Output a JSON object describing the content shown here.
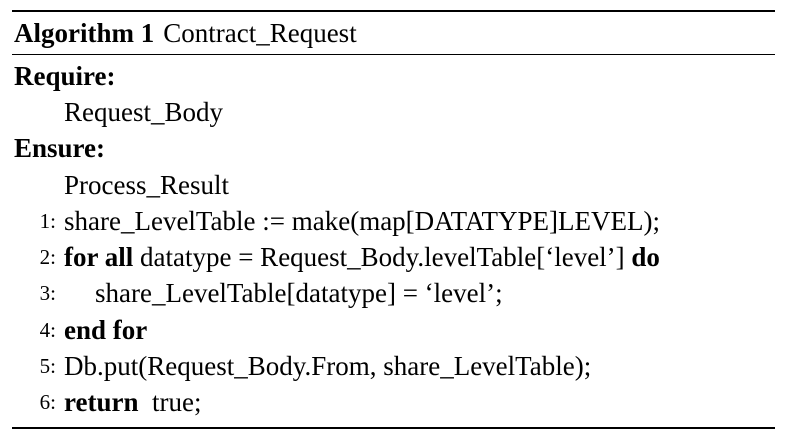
{
  "algorithm": {
    "label": "Algorithm 1",
    "title": "Contract_Request",
    "require_keyword": "Require:",
    "require_value": "Request_Body",
    "ensure_keyword": "Ensure:",
    "ensure_value": "Process_Result",
    "lines": [
      {
        "num": "1:",
        "parts": [
          "share_LevelTable := make(map[DATATYPE]LEVEL);"
        ]
      },
      {
        "num": "2:",
        "kw_start": "for all",
        "text": " datatype = Request_Body.levelTable[‘level’] ",
        "kw_end": "do"
      },
      {
        "num": "3:",
        "text": "share_LevelTable[datatype] = ‘level’;"
      },
      {
        "num": "4:",
        "kw_start": "end for"
      },
      {
        "num": "5:",
        "text": "Db.put(Request_Body.From, share_LevelTable);"
      },
      {
        "num": "6:",
        "kw_start": "return",
        "text": "  true;"
      }
    ]
  }
}
